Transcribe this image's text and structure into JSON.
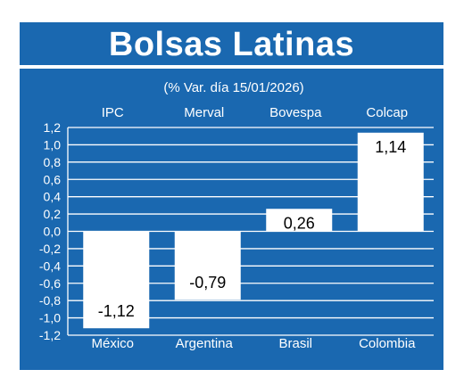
{
  "chart_data": {
    "type": "bar",
    "title": "Bolsas Latinas",
    "subtitle": "(% Var. día 15/01/2026)",
    "categories": [
      "México",
      "Argentina",
      "Brasil",
      "Colombia"
    ],
    "indices": [
      "IPC",
      "Merval",
      "Bovespa",
      "Colcap"
    ],
    "values": [
      -1.12,
      -0.79,
      0.26,
      1.14
    ],
    "value_labels": [
      "-1,12",
      "-0,79",
      "0,26",
      "1,14"
    ],
    "ylim": [
      -1.2,
      1.2
    ],
    "yticks": [
      1.2,
      1.0,
      0.8,
      0.6,
      0.4,
      0.2,
      0.0,
      -0.2,
      -0.4,
      -0.6,
      -0.8,
      -1.0,
      -1.2
    ],
    "ytick_labels": [
      "1,2",
      "1,0",
      "0,8",
      "0,6",
      "0,4",
      "0,2",
      "0,0",
      "-0,2",
      "-0,4",
      "-0,6",
      "-0,8",
      "-1,0",
      "-1,2"
    ],
    "grid": true,
    "legend": "none",
    "colors": {
      "background": "#1a68b0",
      "bars": "#ffffff",
      "text": "#ffffff",
      "bar_label": "#000000"
    }
  }
}
